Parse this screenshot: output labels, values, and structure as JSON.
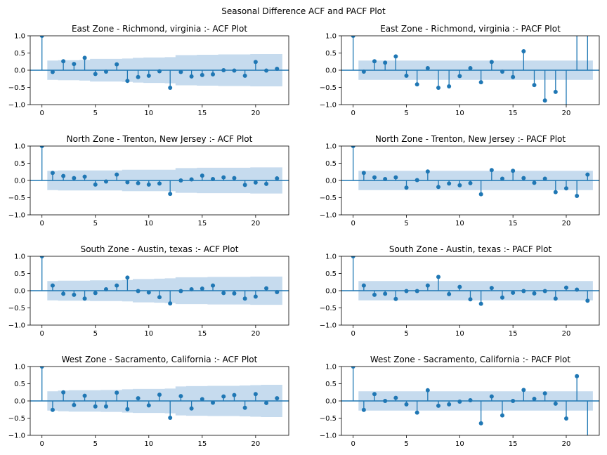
{
  "figure": {
    "title": "Seasonal Difference ACF and PACF Plot",
    "colors": {
      "stem": "#1f77b4",
      "band": "#c6dbee",
      "axis": "#000000",
      "zero_line": "#1f77b4"
    }
  },
  "chart_data": [
    {
      "type": "stem",
      "title": "East Zone - Richmond, virginia :- ACF Plot",
      "x": [
        0,
        1,
        2,
        3,
        4,
        5,
        6,
        7,
        8,
        9,
        10,
        11,
        12,
        13,
        14,
        15,
        16,
        17,
        18,
        19,
        20,
        21,
        22
      ],
      "values": [
        1.0,
        -0.05,
        0.26,
        0.18,
        0.36,
        -0.11,
        -0.04,
        0.17,
        -0.31,
        -0.2,
        -0.16,
        -0.03,
        -0.51,
        -0.05,
        -0.18,
        -0.14,
        -0.12,
        0.0,
        -0.01,
        -0.16,
        0.24,
        -0.01,
        0.04
      ],
      "band_upper": [
        0.28,
        0.28,
        0.29,
        0.29,
        0.3,
        0.33,
        0.33,
        0.33,
        0.34,
        0.36,
        0.37,
        0.37,
        0.38,
        0.44,
        0.44,
        0.45,
        0.45,
        0.46,
        0.46,
        0.46,
        0.47,
        0.47,
        0.47
      ],
      "xlim": [
        -1.1,
        23.1
      ],
      "ylim": [
        -1.0,
        1.0
      ],
      "xticks": [
        0,
        5,
        10,
        15,
        20
      ],
      "yticks": [
        -1.0,
        -0.5,
        0.0,
        0.5,
        1.0
      ],
      "ytick_labels": [
        "−1.0",
        "−0.5",
        "0.0",
        "0.5",
        "1.0"
      ]
    },
    {
      "type": "stem",
      "title": "East Zone - Richmond, virginia :- PACF Plot",
      "x": [
        0,
        1,
        2,
        3,
        4,
        5,
        6,
        7,
        8,
        9,
        10,
        11,
        12,
        13,
        14,
        15,
        16,
        17,
        18,
        19,
        20,
        21,
        22
      ],
      "values": [
        1.0,
        -0.04,
        0.26,
        0.22,
        0.4,
        -0.16,
        -0.41,
        0.06,
        -0.51,
        -0.47,
        -0.17,
        0.06,
        -0.35,
        0.24,
        -0.04,
        -0.2,
        0.55,
        -0.43,
        -0.88,
        -0.63,
        -1.2,
        1.2,
        1.2
      ],
      "band_upper": [
        0.28,
        0.28,
        0.28,
        0.28,
        0.28,
        0.28,
        0.28,
        0.28,
        0.28,
        0.28,
        0.28,
        0.28,
        0.28,
        0.28,
        0.28,
        0.28,
        0.28,
        0.28,
        0.28,
        0.28,
        0.28,
        0.28,
        0.28
      ],
      "xlim": [
        -1.1,
        23.1
      ],
      "ylim": [
        -1.0,
        1.0
      ],
      "xticks": [
        0,
        5,
        10,
        15,
        20
      ],
      "yticks": [
        -1.0,
        -0.5,
        0.0,
        0.5,
        1.0
      ],
      "ytick_labels": [
        "−1.0",
        "−0.5",
        "0.0",
        "0.5",
        "1.0"
      ]
    },
    {
      "type": "stem",
      "title": "North Zone - Trenton, New Jersey :- ACF Plot",
      "x": [
        0,
        1,
        2,
        3,
        4,
        5,
        6,
        7,
        8,
        9,
        10,
        11,
        12,
        13,
        14,
        15,
        16,
        17,
        18,
        19,
        20,
        21,
        22
      ],
      "values": [
        1.0,
        0.22,
        0.13,
        0.07,
        0.11,
        -0.12,
        -0.03,
        0.17,
        -0.05,
        -0.08,
        -0.12,
        -0.09,
        -0.39,
        0.0,
        0.03,
        0.14,
        0.04,
        0.09,
        0.07,
        -0.13,
        -0.06,
        -0.1,
        0.06
      ],
      "band_upper": [
        0.28,
        0.28,
        0.29,
        0.29,
        0.29,
        0.29,
        0.29,
        0.29,
        0.31,
        0.31,
        0.31,
        0.31,
        0.31,
        0.36,
        0.36,
        0.37,
        0.37,
        0.37,
        0.37,
        0.37,
        0.38,
        0.38,
        0.38
      ],
      "xlim": [
        -1.1,
        23.1
      ],
      "ylim": [
        -1.0,
        1.0
      ],
      "xticks": [
        0,
        5,
        10,
        15,
        20
      ],
      "yticks": [
        -1.0,
        -0.5,
        0.0,
        0.5,
        1.0
      ],
      "ytick_labels": [
        "−1.0",
        "−0.5",
        "0.0",
        "0.5",
        "1.0"
      ]
    },
    {
      "type": "stem",
      "title": "North Zone - Trenton, New Jersey :- PACF Plot",
      "x": [
        0,
        1,
        2,
        3,
        4,
        5,
        6,
        7,
        8,
        9,
        10,
        11,
        12,
        13,
        14,
        15,
        16,
        17,
        18,
        19,
        20,
        21,
        22
      ],
      "values": [
        1.0,
        0.22,
        0.09,
        0.04,
        0.09,
        -0.21,
        0.01,
        0.26,
        -0.19,
        -0.09,
        -0.14,
        -0.08,
        -0.4,
        0.3,
        0.05,
        0.28,
        0.07,
        -0.07,
        0.05,
        -0.34,
        -0.23,
        -0.45,
        0.17
      ],
      "band_upper": [
        0.28,
        0.28,
        0.28,
        0.28,
        0.28,
        0.28,
        0.28,
        0.28,
        0.28,
        0.28,
        0.28,
        0.28,
        0.28,
        0.28,
        0.28,
        0.28,
        0.28,
        0.28,
        0.28,
        0.28,
        0.28,
        0.28,
        0.28
      ],
      "xlim": [
        -1.1,
        23.1
      ],
      "ylim": [
        -1.0,
        1.0
      ],
      "xticks": [
        0,
        5,
        10,
        15,
        20
      ],
      "yticks": [
        -1.0,
        -0.5,
        0.0,
        0.5,
        1.0
      ],
      "ytick_labels": [
        "−1.0",
        "−0.5",
        "0.0",
        "0.5",
        "1.0"
      ]
    },
    {
      "type": "stem",
      "title": "South Zone - Austin, texas :- ACF Plot",
      "x": [
        0,
        1,
        2,
        3,
        4,
        5,
        6,
        7,
        8,
        9,
        10,
        11,
        12,
        13,
        14,
        15,
        16,
        17,
        18,
        19,
        20,
        21,
        22
      ],
      "values": [
        1.0,
        0.15,
        -0.09,
        -0.12,
        -0.23,
        -0.07,
        0.04,
        0.15,
        0.38,
        -0.01,
        -0.05,
        -0.19,
        -0.37,
        -0.01,
        0.04,
        0.06,
        0.15,
        -0.07,
        -0.08,
        -0.23,
        -0.17,
        0.07,
        -0.04
      ],
      "band_upper": [
        0.28,
        0.28,
        0.29,
        0.29,
        0.29,
        0.3,
        0.3,
        0.3,
        0.31,
        0.34,
        0.34,
        0.35,
        0.36,
        0.39,
        0.39,
        0.39,
        0.4,
        0.4,
        0.4,
        0.4,
        0.41,
        0.41,
        0.41
      ],
      "xlim": [
        -1.1,
        23.1
      ],
      "ylim": [
        -1.0,
        1.0
      ],
      "xticks": [
        0,
        5,
        10,
        15,
        20
      ],
      "yticks": [
        -1.0,
        -0.5,
        0.0,
        0.5,
        1.0
      ],
      "ytick_labels": [
        "−1.0",
        "−0.5",
        "0.0",
        "0.5",
        "1.0"
      ]
    },
    {
      "type": "stem",
      "title": "South Zone - Austin, texas :- PACF Plot",
      "x": [
        0,
        1,
        2,
        3,
        4,
        5,
        6,
        7,
        8,
        9,
        10,
        11,
        12,
        13,
        14,
        15,
        16,
        17,
        18,
        19,
        20,
        21,
        22
      ],
      "values": [
        1.0,
        0.15,
        -0.12,
        -0.09,
        -0.24,
        -0.01,
        -0.01,
        0.15,
        0.4,
        -0.1,
        0.11,
        -0.25,
        -0.38,
        0.08,
        -0.2,
        -0.06,
        -0.01,
        -0.08,
        -0.01,
        -0.23,
        0.09,
        0.03,
        -0.29
      ],
      "band_upper": [
        0.28,
        0.28,
        0.28,
        0.28,
        0.28,
        0.28,
        0.28,
        0.28,
        0.28,
        0.28,
        0.28,
        0.28,
        0.28,
        0.28,
        0.28,
        0.28,
        0.28,
        0.28,
        0.28,
        0.28,
        0.28,
        0.28,
        0.28
      ],
      "xlim": [
        -1.1,
        23.1
      ],
      "ylim": [
        -1.0,
        1.0
      ],
      "xticks": [
        0,
        5,
        10,
        15,
        20
      ],
      "yticks": [
        -1.0,
        -0.5,
        0.0,
        0.5,
        1.0
      ],
      "ytick_labels": [
        "−1.0",
        "−0.5",
        "0.0",
        "0.5",
        "1.0"
      ]
    },
    {
      "type": "stem",
      "title": "West Zone - Sacramento, California :- ACF Plot",
      "x": [
        0,
        1,
        2,
        3,
        4,
        5,
        6,
        7,
        8,
        9,
        10,
        11,
        12,
        13,
        14,
        15,
        16,
        17,
        18,
        19,
        20,
        21,
        22
      ],
      "values": [
        1.0,
        -0.26,
        0.25,
        -0.12,
        0.15,
        -0.16,
        -0.16,
        0.24,
        -0.24,
        0.08,
        -0.13,
        0.18,
        -0.49,
        0.14,
        -0.22,
        0.05,
        -0.05,
        0.13,
        0.17,
        -0.2,
        0.2,
        -0.06,
        0.08
      ],
      "band_upper": [
        0.28,
        0.28,
        0.3,
        0.31,
        0.31,
        0.31,
        0.32,
        0.32,
        0.34,
        0.35,
        0.35,
        0.35,
        0.36,
        0.42,
        0.43,
        0.43,
        0.44,
        0.44,
        0.44,
        0.45,
        0.46,
        0.47,
        0.47
      ],
      "xlim": [
        -1.1,
        23.1
      ],
      "ylim": [
        -1.0,
        1.0
      ],
      "xticks": [
        0,
        5,
        10,
        15,
        20
      ],
      "yticks": [
        -1.0,
        -0.5,
        0.0,
        0.5,
        1.0
      ],
      "ytick_labels": [
        "−1.0",
        "−0.5",
        "0.0",
        "0.5",
        "1.0"
      ]
    },
    {
      "type": "stem",
      "title": "West Zone - Sacramento, California :- PACF Plot",
      "x": [
        0,
        1,
        2,
        3,
        4,
        5,
        6,
        7,
        8,
        9,
        10,
        11,
        12,
        13,
        14,
        15,
        16,
        17,
        18,
        19,
        20,
        21,
        22
      ],
      "values": [
        1.0,
        -0.26,
        0.2,
        0.0,
        0.09,
        -0.1,
        -0.34,
        0.31,
        -0.14,
        -0.1,
        -0.02,
        0.02,
        -0.65,
        0.13,
        -0.42,
        0.0,
        0.32,
        0.06,
        0.22,
        -0.08,
        -0.51,
        0.72,
        -1.2
      ],
      "band_upper": [
        0.28,
        0.28,
        0.28,
        0.28,
        0.28,
        0.28,
        0.28,
        0.28,
        0.28,
        0.28,
        0.28,
        0.28,
        0.28,
        0.28,
        0.28,
        0.28,
        0.28,
        0.28,
        0.28,
        0.28,
        0.28,
        0.28,
        0.28
      ],
      "xlim": [
        -1.1,
        23.1
      ],
      "ylim": [
        -1.0,
        1.0
      ],
      "xticks": [
        0,
        5,
        10,
        15,
        20
      ],
      "yticks": [
        -1.0,
        -0.5,
        0.0,
        0.5,
        1.0
      ],
      "ytick_labels": [
        "−1.0",
        "−0.5",
        "0.0",
        "0.5",
        "1.0"
      ]
    }
  ]
}
